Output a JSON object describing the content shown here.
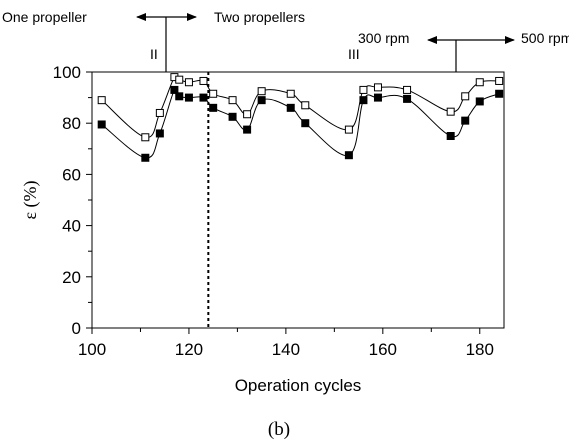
{
  "chart_data": {
    "type": "line",
    "title": "",
    "xlabel": "Operation cycles",
    "ylabel": "ε (%)",
    "caption": "(b)",
    "xlim": [
      100,
      185
    ],
    "ylim": [
      0,
      100
    ],
    "x_ticks": [
      100,
      120,
      140,
      160,
      180
    ],
    "y_ticks": [
      0,
      20,
      40,
      60,
      80,
      100
    ],
    "grid": false,
    "legend": "none",
    "annotations": {
      "one_propeller": "One propeller",
      "two_propellers": "Two propellers",
      "phase_II": "II",
      "phase_III": "III",
      "rpm_300": "300 rpm",
      "rpm_500": "500 rpm",
      "divider_x": 124
    },
    "series": [
      {
        "marker": "open-square",
        "points": [
          [
            102,
            89
          ],
          [
            111,
            74.5
          ],
          [
            114,
            84
          ],
          [
            117,
            98
          ],
          [
            118,
            97
          ],
          [
            120,
            96
          ],
          [
            123,
            96.5
          ],
          [
            125,
            91.5
          ],
          [
            129,
            89
          ],
          [
            132,
            83.5
          ],
          [
            135,
            92.5
          ],
          [
            141,
            91.5
          ],
          [
            144,
            87
          ],
          [
            153,
            77.5
          ],
          [
            156,
            93
          ],
          [
            159,
            94
          ],
          [
            165,
            93
          ],
          [
            174,
            84.5
          ],
          [
            177,
            90.5
          ],
          [
            180,
            96
          ],
          [
            184,
            96.5
          ]
        ]
      },
      {
        "marker": "filled-square",
        "points": [
          [
            102,
            79.5
          ],
          [
            111,
            66.5
          ],
          [
            114,
            76
          ],
          [
            117,
            93
          ],
          [
            118,
            90.5
          ],
          [
            120,
            90
          ],
          [
            123,
            90
          ],
          [
            125,
            86
          ],
          [
            129,
            82.5
          ],
          [
            132,
            77.5
          ],
          [
            135,
            89
          ],
          [
            141,
            86
          ],
          [
            144,
            80
          ],
          [
            153,
            67.5
          ],
          [
            156,
            89
          ],
          [
            159,
            90
          ],
          [
            165,
            89.5
          ],
          [
            174,
            75
          ],
          [
            177,
            81
          ],
          [
            180,
            88.5
          ],
          [
            184,
            91.5
          ]
        ]
      }
    ]
  }
}
